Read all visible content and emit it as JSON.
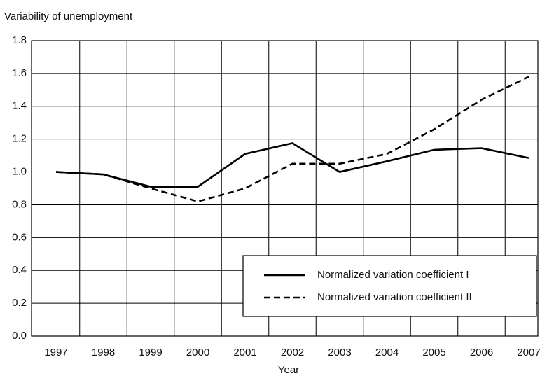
{
  "chart_data": {
    "type": "line",
    "y_label": "Variability of unemployment",
    "x_label": "Year",
    "categories": [
      "1997",
      "1998",
      "1999",
      "2000",
      "2001",
      "2002",
      "2003",
      "2004",
      "2005",
      "2006",
      "2007"
    ],
    "series": [
      {
        "name": "Normalized variation coefficient I",
        "color": "#000000",
        "dash": "solid",
        "values": [
          1.0,
          0.985,
          0.91,
          0.91,
          1.11,
          1.175,
          1.0,
          1.065,
          1.135,
          1.145,
          1.085
        ]
      },
      {
        "name": "Normalized variation coefficient II",
        "color": "#000000",
        "dash": "dashed",
        "values": [
          1.0,
          0.985,
          0.9,
          0.82,
          0.9,
          1.05,
          1.05,
          1.11,
          1.26,
          1.44,
          1.58
        ]
      }
    ],
    "ylim": [
      0,
      1.8
    ],
    "yticks": [
      {
        "value": 0,
        "label": "0.0"
      },
      0.2,
      0.4,
      0.6,
      0.8,
      {
        "value": 1,
        "label": "1.0"
      },
      1.2,
      1.4,
      1.6,
      1.8
    ],
    "grid": true,
    "legend": "lower right"
  }
}
